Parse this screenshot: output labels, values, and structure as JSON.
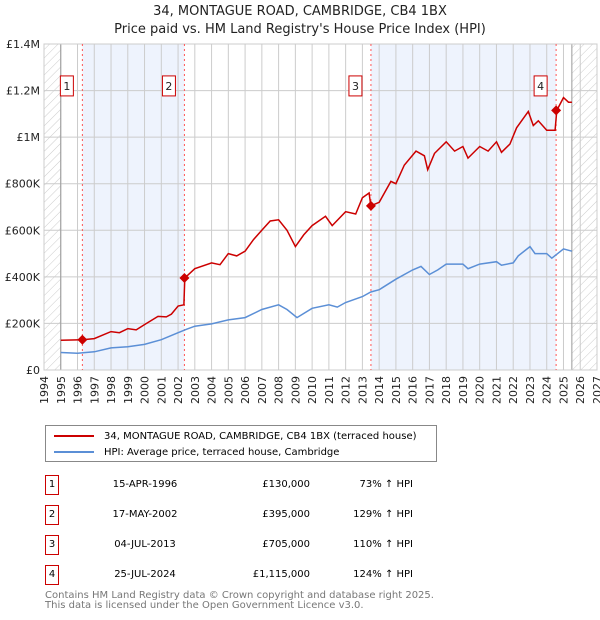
{
  "chart_data": {
    "type": "line",
    "title": "34, MONTAGUE ROAD, CAMBRIDGE, CB4 1BX",
    "subtitle": "Price paid vs. HM Land Registry's House Price Index (HPI)",
    "xlim": [
      1994,
      2027
    ],
    "ylim": [
      0,
      1400000
    ],
    "x_ticks": [
      "1994",
      "1995",
      "1996",
      "1997",
      "1998",
      "1999",
      "2000",
      "2001",
      "2002",
      "2003",
      "2004",
      "2005",
      "2006",
      "2007",
      "2008",
      "2009",
      "2010",
      "2011",
      "2012",
      "2013",
      "2014",
      "2015",
      "2016",
      "2017",
      "2018",
      "2019",
      "2020",
      "2021",
      "2022",
      "2023",
      "2024",
      "2025",
      "2026",
      "2027"
    ],
    "y_ticks": [
      {
        "v": 0,
        "label": "£0"
      },
      {
        "v": 200000,
        "label": "£200K"
      },
      {
        "v": 400000,
        "label": "£400K"
      },
      {
        "v": 600000,
        "label": "£600K"
      },
      {
        "v": 800000,
        "label": "£800K"
      },
      {
        "v": 1000000,
        "label": "£1M"
      },
      {
        "v": 1200000,
        "label": "£1.2M"
      },
      {
        "v": 1400000,
        "label": "£1.4M"
      }
    ],
    "grid": true,
    "series": [
      {
        "name": "34, MONTAGUE ROAD, CAMBRIDGE, CB4 1BX (terraced house)",
        "color": "#cc0000",
        "x": [
          1995,
          1996.3,
          1997,
          1998,
          1998.5,
          1999,
          1999.5,
          2000,
          2000.8,
          2001.3,
          2001.6,
          2002,
          2002.35,
          2002.4,
          2003,
          2004,
          2004.5,
          2005,
          2005.5,
          2006,
          2006.5,
          2007,
          2007.5,
          2008,
          2008.5,
          2009,
          2009.5,
          2010,
          2010.8,
          2011.2,
          2012,
          2012.6,
          2013,
          2013.4,
          2013.5,
          2014,
          2014.7,
          2015,
          2015.5,
          2016.2,
          2016.7,
          2016.9,
          2017.3,
          2018,
          2018.5,
          2019,
          2019.3,
          2020,
          2020.5,
          2021,
          2021.3,
          2021.8,
          2022.2,
          2022.9,
          2023.2,
          2023.5,
          2024,
          2024.5,
          2024.6,
          2025,
          2025.3,
          2025.5
        ],
        "y": [
          128000,
          130000,
          135000,
          165000,
          160000,
          178000,
          172000,
          195000,
          230000,
          228000,
          240000,
          275000,
          280000,
          395000,
          435000,
          460000,
          452000,
          500000,
          490000,
          510000,
          560000,
          600000,
          640000,
          645000,
          600000,
          530000,
          580000,
          620000,
          660000,
          620000,
          680000,
          670000,
          740000,
          760000,
          705000,
          720000,
          810000,
          800000,
          880000,
          940000,
          920000,
          860000,
          930000,
          980000,
          940000,
          960000,
          910000,
          960000,
          940000,
          980000,
          935000,
          970000,
          1040000,
          1110000,
          1050000,
          1070000,
          1030000,
          1030000,
          1115000,
          1170000,
          1150000,
          1150000
        ]
      },
      {
        "name": "HPI: Average price, terraced house, Cambridge",
        "color": "#5b8fd6",
        "x": [
          1995,
          1996,
          1997,
          1998,
          1999,
          2000,
          2001,
          2002,
          2002.5,
          2003,
          2004,
          2005,
          2006,
          2007,
          2008,
          2008.5,
          2009.1,
          2010,
          2011,
          2011.5,
          2012,
          2013,
          2013.5,
          2014,
          2015,
          2016,
          2016.5,
          2017,
          2017.5,
          2018,
          2019,
          2019.3,
          2020,
          2021,
          2021.3,
          2022,
          2022.3,
          2023,
          2023.3,
          2024,
          2024.3,
          2025,
          2025.5
        ],
        "y": [
          75000,
          72000,
          78000,
          95000,
          100000,
          110000,
          130000,
          160000,
          175000,
          188000,
          198000,
          215000,
          225000,
          260000,
          280000,
          260000,
          225000,
          265000,
          280000,
          270000,
          290000,
          315000,
          335000,
          345000,
          390000,
          430000,
          445000,
          410000,
          430000,
          455000,
          455000,
          435000,
          455000,
          465000,
          450000,
          460000,
          490000,
          530000,
          500000,
          500000,
          480000,
          520000,
          510000
        ]
      }
    ],
    "sales": [
      {
        "label": "1",
        "x": 1996.29,
        "y": 130000,
        "date": "15-APR-1996",
        "price": "£130,000",
        "hpi": "73% ↑ HPI"
      },
      {
        "label": "2",
        "x": 2002.38,
        "y": 395000,
        "date": "17-MAY-2002",
        "price": "£395,000",
        "hpi": "129% ↑ HPI"
      },
      {
        "label": "3",
        "x": 2013.51,
        "y": 705000,
        "date": "04-JUL-2013",
        "price": "£705,000",
        "hpi": "110% ↑ HPI"
      },
      {
        "label": "4",
        "x": 2024.56,
        "y": 1115000,
        "date": "25-JUL-2024",
        "price": "£1,115,000",
        "hpi": "124% ↑ HPI"
      }
    ],
    "shaded_ranges": [
      [
        1996.29,
        2002.38
      ],
      [
        2013.51,
        2024.56
      ]
    ],
    "hatched_ranges": [
      [
        1994,
        1995
      ],
      [
        2025.5,
        2027
      ]
    ],
    "legend_placement": "bottom"
  },
  "footer": {
    "line1": "Contains HM Land Registry data © Crown copyright and database right 2025.",
    "line2": "This data is licensed under the Open Government Licence v3.0."
  }
}
